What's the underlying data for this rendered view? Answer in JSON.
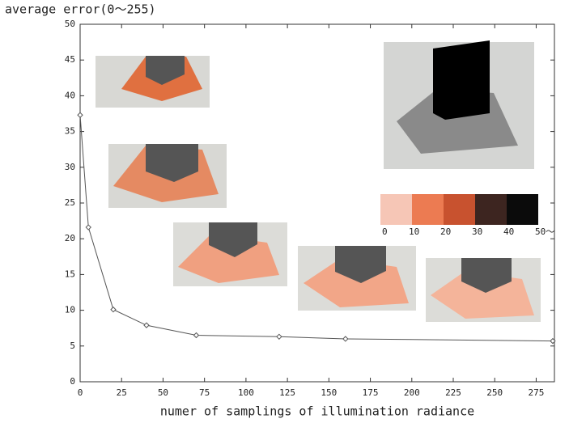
{
  "chart_data": {
    "type": "line",
    "title": "average error(0〜255)",
    "x_label": "numer of samplings of illumination radiance",
    "x": [
      0,
      5,
      20,
      40,
      70,
      120,
      160,
      285
    ],
    "values": [
      37.3,
      21.6,
      10.1,
      7.9,
      6.5,
      6.3,
      6.0,
      5.7
    ],
    "color": "#555555",
    "xlim": [
      0,
      286
    ],
    "ylim": [
      0,
      50
    ],
    "xticks": [
      0,
      25,
      50,
      75,
      100,
      125,
      150,
      175,
      200,
      225,
      250,
      275
    ],
    "yticks": [
      0,
      5,
      10,
      15,
      20,
      25,
      30,
      35,
      40,
      45,
      50
    ],
    "grid": false,
    "colorbar": {
      "colors": [
        "#f6c6b6",
        "#ec7b52",
        "#c8522f",
        "#3d2520",
        "#0b0b0b"
      ],
      "ticks": [
        0,
        10,
        20,
        30,
        40,
        {
          "value": 50,
          "label": "50〜"
        }
      ]
    }
  }
}
